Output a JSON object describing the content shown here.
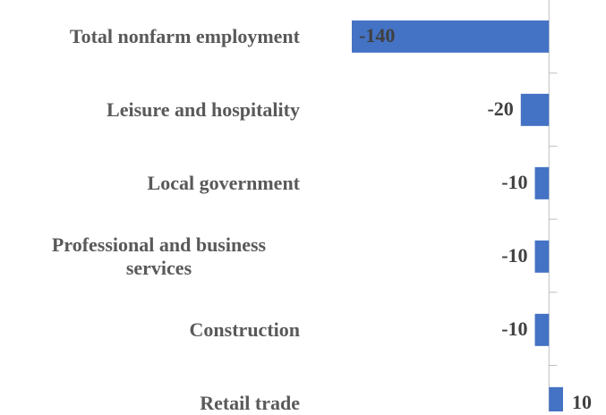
{
  "chart_data": {
    "type": "bar",
    "orientation": "horizontal",
    "categories": [
      "Total nonfarm employment",
      "Leisure and hospitality",
      "Local government",
      "Professional and business services",
      "Construction",
      "Retail trade"
    ],
    "values": [
      -140,
      -20,
      -10,
      -10,
      -10,
      10
    ],
    "color": "#4472c4",
    "xlim": [
      -140,
      10
    ]
  }
}
